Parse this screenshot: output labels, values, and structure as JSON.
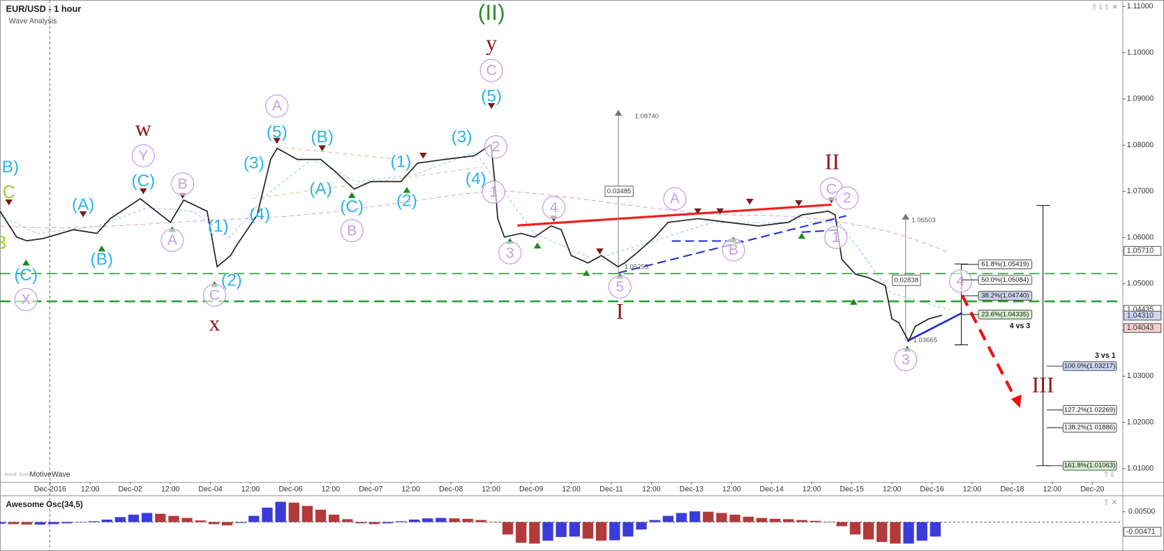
{
  "chart_data": [
    {
      "type": "line",
      "title": "EUR/USD - 1 hour",
      "subtitle": "Wave Analysis",
      "watermark": "MotiveWave",
      "x": [
        -15,
        -10,
        -7,
        -2,
        7,
        14,
        18,
        27,
        36,
        40,
        47,
        50,
        54,
        56,
        62,
        66,
        68,
        74,
        81,
        85,
        91,
        96,
        105,
        110,
        118,
        127,
        132,
        133,
        134,
        136,
        141,
        145,
        150,
        153,
        156,
        161,
        165,
        170,
        172,
        176,
        181,
        185,
        194,
        203,
        212,
        221,
        225,
        233,
        235,
        236,
        237,
        241,
        245,
        250,
        252,
        254,
        257,
        259,
        263,
        267
      ],
      "values": [
        1.0657,
        1.0601,
        1.0593,
        1.0598,
        1.0617,
        1.0609,
        1.0641,
        1.0684,
        1.0633,
        1.0681,
        1.0657,
        1.0537,
        1.0561,
        1.0585,
        1.0649,
        1.0769,
        1.0793,
        1.0769,
        1.0769,
        1.0745,
        1.0705,
        1.0721,
        1.0721,
        1.0761,
        1.0769,
        1.0777,
        1.0801,
        1.0729,
        1.0641,
        1.0601,
        1.0609,
        1.0601,
        1.0625,
        1.0617,
        1.0561,
        1.0545,
        1.0561,
        1.0537,
        1.0545,
        1.0569,
        1.0601,
        1.0633,
        1.0641,
        1.0633,
        1.0625,
        1.0633,
        1.0649,
        1.0657,
        1.0649,
        1.0601,
        1.0553,
        1.0521,
        1.0513,
        1.0496,
        1.0424,
        1.0416,
        1.0376,
        1.0408,
        1.0424,
        1.0432
      ],
      "color": "#222222",
      "xlim": [
        -15,
        321
      ],
      "xticks": [
        {
          "value": 0,
          "label": "Dec-2016"
        },
        {
          "value": 12,
          "label": "12:00"
        },
        {
          "value": 24,
          "label": "Dec-02"
        },
        {
          "value": 36,
          "label": "12:00"
        },
        {
          "value": 48,
          "label": "Dec-04"
        },
        {
          "value": 60,
          "label": "12:00"
        },
        {
          "value": 72,
          "label": "Dec-06"
        },
        {
          "value": 84,
          "label": "12:00"
        },
        {
          "value": 96,
          "label": "Dec-07"
        },
        {
          "value": 108,
          "label": "12:00"
        },
        {
          "value": 120,
          "label": "Dec-08"
        },
        {
          "value": 132,
          "label": "12:00"
        },
        {
          "value": 144,
          "label": "Dec-09"
        },
        {
          "value": 156,
          "label": "12:00"
        },
        {
          "value": 168,
          "label": "Dec-11"
        },
        {
          "value": 180,
          "label": "12:00"
        },
        {
          "value": 192,
          "label": "Dec-13"
        },
        {
          "value": 204,
          "label": "12:00"
        },
        {
          "value": 216,
          "label": "Dec-14"
        },
        {
          "value": 228,
          "label": "12:00"
        },
        {
          "value": 240,
          "label": "Dec-15"
        },
        {
          "value": 252,
          "label": "12:00"
        },
        {
          "value": 264,
          "label": "Dec-16"
        },
        {
          "value": 276,
          "label": "12:00"
        },
        {
          "value": 288,
          "label": "Dec-18"
        },
        {
          "value": 300,
          "label": "12:00"
        },
        {
          "value": 312,
          "label": "Dec-20"
        }
      ],
      "ylim": [
        1.0071,
        1.1114
      ],
      "yticks": [
        {
          "value": 1.01,
          "label": "1.01000"
        },
        {
          "value": 1.02,
          "label": "1.02000"
        },
        {
          "value": 1.03,
          "label": "1.03000"
        },
        {
          "value": 1.04,
          "label": "1.04000"
        },
        {
          "value": 1.05,
          "label": "1.05000"
        },
        {
          "value": 1.06,
          "label": "1.06000"
        },
        {
          "value": 1.07,
          "label": "1.07000"
        },
        {
          "value": 1.08,
          "label": "1.08000"
        },
        {
          "value": 1.09,
          "label": "1.09000"
        },
        {
          "value": 1.1,
          "label": "1.10000"
        },
        {
          "value": 1.11,
          "label": "1.11000"
        }
      ],
      "price_labels": [
        {
          "value": 1.0571,
          "label": "1.05710"
        },
        {
          "value": 1.04435,
          "label": "1.04435"
        },
        {
          "value": 1.0431,
          "label": "1.04310"
        },
        {
          "value": 1.04043,
          "label": "1.04043"
        }
      ],
      "support_lines": [
        1.0522,
        1.0462
      ],
      "support_color": "#2ca02c",
      "fib_levels": [
        {
          "value": 1.05419,
          "label": "61.8%(1.05419)"
        },
        {
          "value": 1.05084,
          "label": "50.0%(1.05084)"
        },
        {
          "value": 1.0474,
          "label": "38.2%(1.04740)"
        },
        {
          "value": 1.04335,
          "label": "23.6%(1.04335)"
        },
        {
          "value": 1.03217,
          "label": "100.0%(1.03217)"
        },
        {
          "value": 1.02269,
          "label": "127.2%(1.02269)"
        },
        {
          "value": 1.01886,
          "label": "138.2%(1.01886)"
        },
        {
          "value": 1.01063,
          "label": "161.8%(1.01063)"
        }
      ],
      "wave_labels": [
        "B)",
        "C",
        "3",
        "(C)",
        "X",
        "(A)",
        "(B)",
        "w",
        "Y",
        "(C)",
        "B",
        "A",
        "(1)",
        "(2)",
        "C",
        "x",
        "(3)",
        "(4)",
        "(5)",
        "A",
        "(B)",
        "(A)",
        "(C)",
        "B",
        "(1)",
        "(2)",
        "(3)",
        "(4)",
        "2",
        "1",
        "(5)",
        "C",
        "y",
        "(II)",
        "3",
        "4",
        "5",
        "I",
        "A",
        "B",
        "II",
        "C",
        "2",
        "1",
        "3",
        "4",
        "III"
      ],
      "measure_labels": [
        "1.08740",
        "0.03485",
        "1.05255",
        "1.06503",
        "0.02838",
        "1.03665"
      ],
      "notes": [
        "4 vs 3",
        "3 vs 1"
      ]
    },
    {
      "type": "bar",
      "title": "Awesome Osc(34,5)",
      "x": [
        -15,
        -11,
        -7,
        -3,
        1,
        5,
        9,
        13,
        17,
        21,
        25,
        29,
        33,
        37,
        41,
        45,
        49,
        53,
        57,
        61,
        65,
        69,
        73,
        77,
        81,
        85,
        89,
        93,
        97,
        101,
        105,
        109,
        113,
        117,
        121,
        125,
        129,
        133,
        137,
        141,
        145,
        149,
        153,
        157,
        161,
        165,
        169,
        173,
        177,
        181,
        185,
        189,
        193,
        197,
        201,
        205,
        209,
        213,
        217,
        221,
        225,
        229,
        233,
        237,
        241,
        245,
        249,
        253,
        257,
        261,
        265
      ],
      "values": [
        -0.0008,
        -0.001,
        -0.0012,
        -0.0012,
        -0.001,
        -0.0006,
        -0.0002,
        0.0004,
        0.0012,
        0.0024,
        0.0036,
        0.0044,
        0.004,
        0.003,
        0.002,
        0.0008,
        -0.001,
        -0.0016,
        -0.0004,
        0.003,
        0.007,
        0.0098,
        0.0094,
        0.0078,
        0.006,
        0.0036,
        0.0014,
        -0.0006,
        -0.001,
        -0.0006,
        0.0004,
        0.0012,
        0.0018,
        0.002,
        0.0018,
        0.0016,
        0.001,
        0.0002,
        -0.006,
        -0.01,
        -0.0104,
        -0.009,
        -0.0072,
        -0.007,
        -0.008,
        -0.009,
        -0.0088,
        -0.007,
        -0.0036,
        0.001,
        0.003,
        0.0044,
        0.0052,
        0.005,
        0.0044,
        0.0036,
        0.0026,
        0.002,
        0.0016,
        0.0014,
        0.001,
        0.0006,
        0.0002,
        -0.002,
        -0.006,
        -0.0084,
        -0.0096,
        -0.0104,
        -0.0104,
        -0.009,
        -0.007
      ],
      "up_color": "#3b3bdc",
      "down_color": "#b23a3a",
      "ylim": [
        -0.0129,
        0.0129
      ],
      "yticks": [
        {
          "value": 0.005,
          "label": "0.00500"
        }
      ],
      "price_labels": [
        {
          "value": -0.00471,
          "label": "-0.00471"
        }
      ]
    }
  ]
}
